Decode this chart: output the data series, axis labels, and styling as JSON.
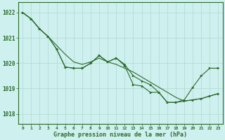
{
  "background_color": "#cef0ee",
  "grid_color": "#aad4cc",
  "line_color": "#2d6a2d",
  "marker_color": "#2d6a2d",
  "xlabel": "Graphe pression niveau de la mer (hPa)",
  "xlabel_color": "#2d6a2d",
  "tick_color": "#2d6a2d",
  "ylim": [
    1017.6,
    1022.4
  ],
  "xlim": [
    -0.5,
    23.5
  ],
  "yticks": [
    1018,
    1019,
    1020,
    1021,
    1022
  ],
  "xticks": [
    0,
    1,
    2,
    3,
    4,
    5,
    6,
    7,
    8,
    9,
    10,
    11,
    12,
    13,
    14,
    15,
    16,
    17,
    18,
    19,
    20,
    21,
    22,
    23
  ],
  "series": [
    {
      "x": [
        0,
        1,
        2,
        3,
        4,
        5,
        6,
        7,
        8,
        9,
        10,
        11,
        12,
        13,
        14,
        15,
        16,
        17,
        18,
        19,
        20,
        21,
        22,
        23
      ],
      "y": [
        1022.0,
        1021.75,
        1021.35,
        1021.05,
        1020.7,
        1020.35,
        1020.05,
        1019.95,
        1020.05,
        1020.2,
        1020.05,
        1019.95,
        1019.8,
        1019.65,
        1019.45,
        1019.25,
        1019.05,
        1018.85,
        1018.65,
        1018.5,
        1018.55,
        1018.6,
        1018.7,
        1018.8
      ],
      "markers": false,
      "linewidth": 0.8
    },
    {
      "x": [
        0,
        1,
        2,
        3,
        4,
        5,
        6,
        7,
        8,
        9,
        10,
        11,
        12,
        13,
        14,
        15,
        16,
        17,
        18,
        19,
        20,
        21,
        22,
        23
      ],
      "y": [
        1022.0,
        1021.75,
        1021.35,
        1021.05,
        1020.55,
        1019.85,
        1019.8,
        1019.8,
        1020.0,
        1020.3,
        1020.05,
        1020.2,
        1019.95,
        1019.5,
        1019.3,
        1019.15,
        1018.85,
        1018.45,
        1018.45,
        1018.5,
        1018.55,
        1018.6,
        1018.7,
        1018.8
      ],
      "markers": true,
      "linewidth": 0.8
    },
    {
      "x": [
        0,
        1,
        2,
        3,
        4,
        5,
        6,
        7,
        8,
        9,
        10,
        11,
        12,
        13,
        14,
        15,
        16,
        17,
        18,
        19,
        20,
        21,
        22,
        23
      ],
      "y": [
        1022.0,
        1021.75,
        1021.35,
        1021.05,
        1020.55,
        1019.85,
        1019.8,
        1019.8,
        1020.0,
        1020.3,
        1020.05,
        1020.2,
        1019.9,
        1019.15,
        1019.1,
        1018.85,
        1018.85,
        1018.45,
        1018.45,
        1018.55,
        1019.05,
        1019.5,
        1019.8,
        1019.8
      ],
      "markers": true,
      "linewidth": 0.8
    }
  ],
  "figsize": [
    3.2,
    2.0
  ],
  "dpi": 100
}
